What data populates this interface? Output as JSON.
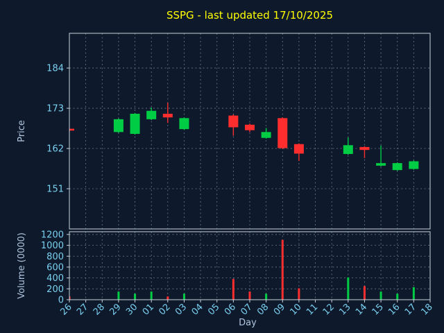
{
  "chart_data": {
    "type": "candlestick",
    "title": "SSPG - last updated 17/10/2025",
    "xlabel": "Day",
    "ylabel_price": "Price",
    "ylabel_volume": "Volume (0000)",
    "grid": true,
    "legend": "none",
    "x_ticklabels": [
      "26",
      "27",
      "28",
      "29",
      "30",
      "01",
      "02",
      "03",
      "04",
      "05",
      "06",
      "07",
      "08",
      "09",
      "10",
      "11",
      "12",
      "13",
      "14",
      "15",
      "16",
      "17",
      "18"
    ],
    "price_yticks": [
      151,
      162,
      173,
      184
    ],
    "price_ylim": [
      140,
      193.5
    ],
    "volume_yticks": [
      0,
      200,
      400,
      600,
      800,
      1000,
      1200
    ],
    "volume_ylim": [
      0,
      1250
    ],
    "colors": {
      "background": "#0e1a2b",
      "up": "#00cc44",
      "down": "#ff2e2e",
      "grid": "#6b7b8d",
      "spine": "#ccd4dc",
      "ticklabel": "#7ad0f0",
      "axislabel": "#b0c4de",
      "title": "#ffff00"
    },
    "candles": [
      {
        "day": "26",
        "open": 167.4,
        "high": 167.5,
        "low": 166.7,
        "close": 166.9
      },
      null,
      null,
      {
        "day": "29",
        "open": 166.5,
        "high": 170.2,
        "low": 166.3,
        "close": 170.0
      },
      {
        "day": "30",
        "open": 166.0,
        "high": 171.7,
        "low": 165.8,
        "close": 171.5
      },
      {
        "day": "01",
        "open": 170.0,
        "high": 173.2,
        "low": 169.8,
        "close": 172.3
      },
      {
        "day": "02",
        "open": 171.5,
        "high": 174.5,
        "low": 169.0,
        "close": 170.5
      },
      {
        "day": "03",
        "open": 167.3,
        "high": 170.5,
        "low": 167.1,
        "close": 170.3
      },
      null,
      null,
      {
        "day": "06",
        "open": 171.0,
        "high": 171.3,
        "low": 165.5,
        "close": 167.8
      },
      {
        "day": "07",
        "open": 168.5,
        "high": 168.8,
        "low": 166.5,
        "close": 167.0
      },
      {
        "day": "08",
        "open": 164.9,
        "high": 167.6,
        "low": 164.7,
        "close": 166.5
      },
      {
        "day": "09",
        "open": 170.3,
        "high": 170.5,
        "low": 161.9,
        "close": 162.1
      },
      {
        "day": "10",
        "open": 163.2,
        "high": 163.4,
        "low": 158.6,
        "close": 160.6
      },
      null,
      null,
      {
        "day": "13",
        "open": 160.5,
        "high": 165.0,
        "low": 160.3,
        "close": 162.9
      },
      {
        "day": "14",
        "open": 162.4,
        "high": 162.6,
        "low": 159.4,
        "close": 161.6
      },
      {
        "day": "15",
        "open": 157.3,
        "high": 162.8,
        "low": 157.1,
        "close": 158.0
      },
      {
        "day": "16",
        "open": 156.1,
        "high": 158.2,
        "low": 155.9,
        "close": 158.0
      },
      {
        "day": "17",
        "open": 156.4,
        "high": 158.7,
        "low": 156.2,
        "close": 158.5
      },
      null
    ],
    "volumes": [
      60,
      0,
      0,
      150,
      110,
      150,
      60,
      110,
      0,
      0,
      380,
      150,
      110,
      1100,
      210,
      0,
      0,
      410,
      250,
      150,
      110,
      230,
      0
    ]
  }
}
